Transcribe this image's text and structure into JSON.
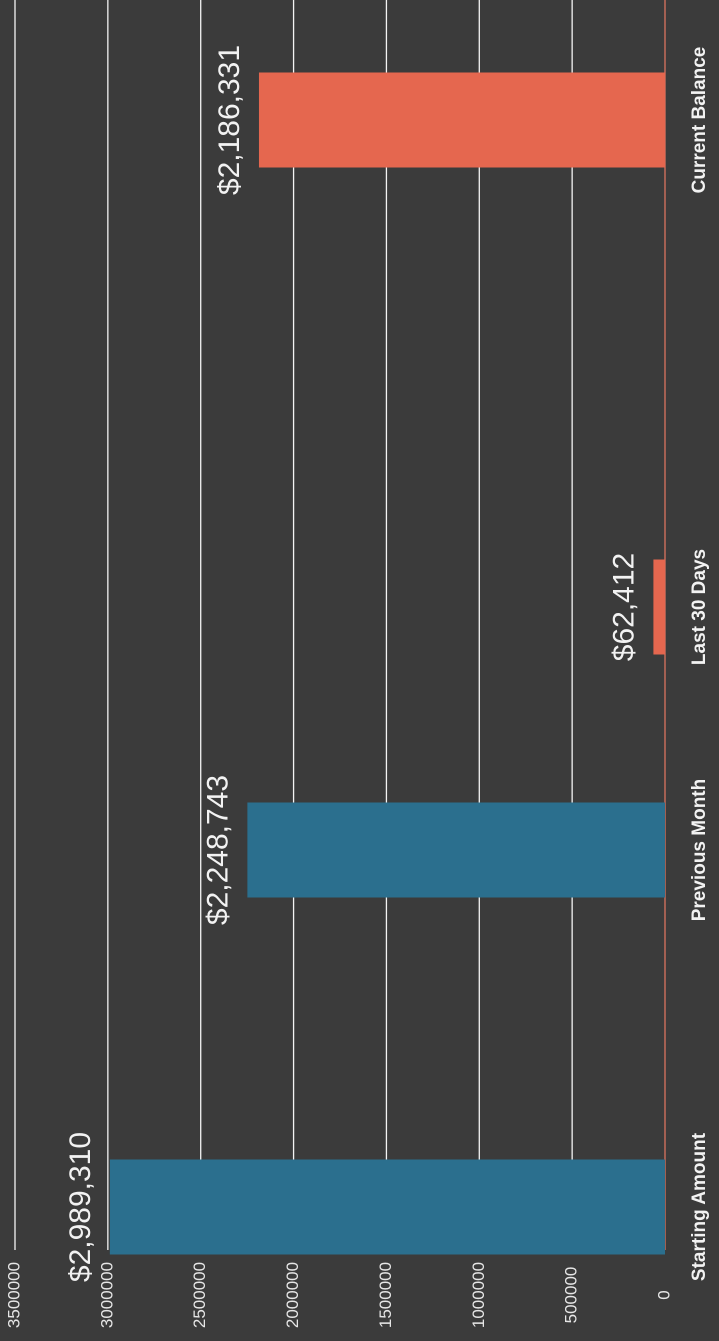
{
  "chart_data": {
    "type": "bar",
    "categories": [
      "Starting Amount",
      "Previous Month",
      "Last 30 Days",
      "Current Balance"
    ],
    "values": [
      2989310,
      2248743,
      62412,
      2186331
    ],
    "value_labels": [
      "$2,989,310",
      "$2,248,743",
      "$62,412",
      "$2,186,331"
    ],
    "colors": [
      "#2b6f8e",
      "#2b6f8e",
      "#e5674f",
      "#e5674f"
    ],
    "ylim": [
      0,
      3500000
    ],
    "yticks": [
      0,
      500000,
      1000000,
      1500000,
      2000000,
      2500000,
      3000000,
      3500000
    ],
    "grid": true
  }
}
